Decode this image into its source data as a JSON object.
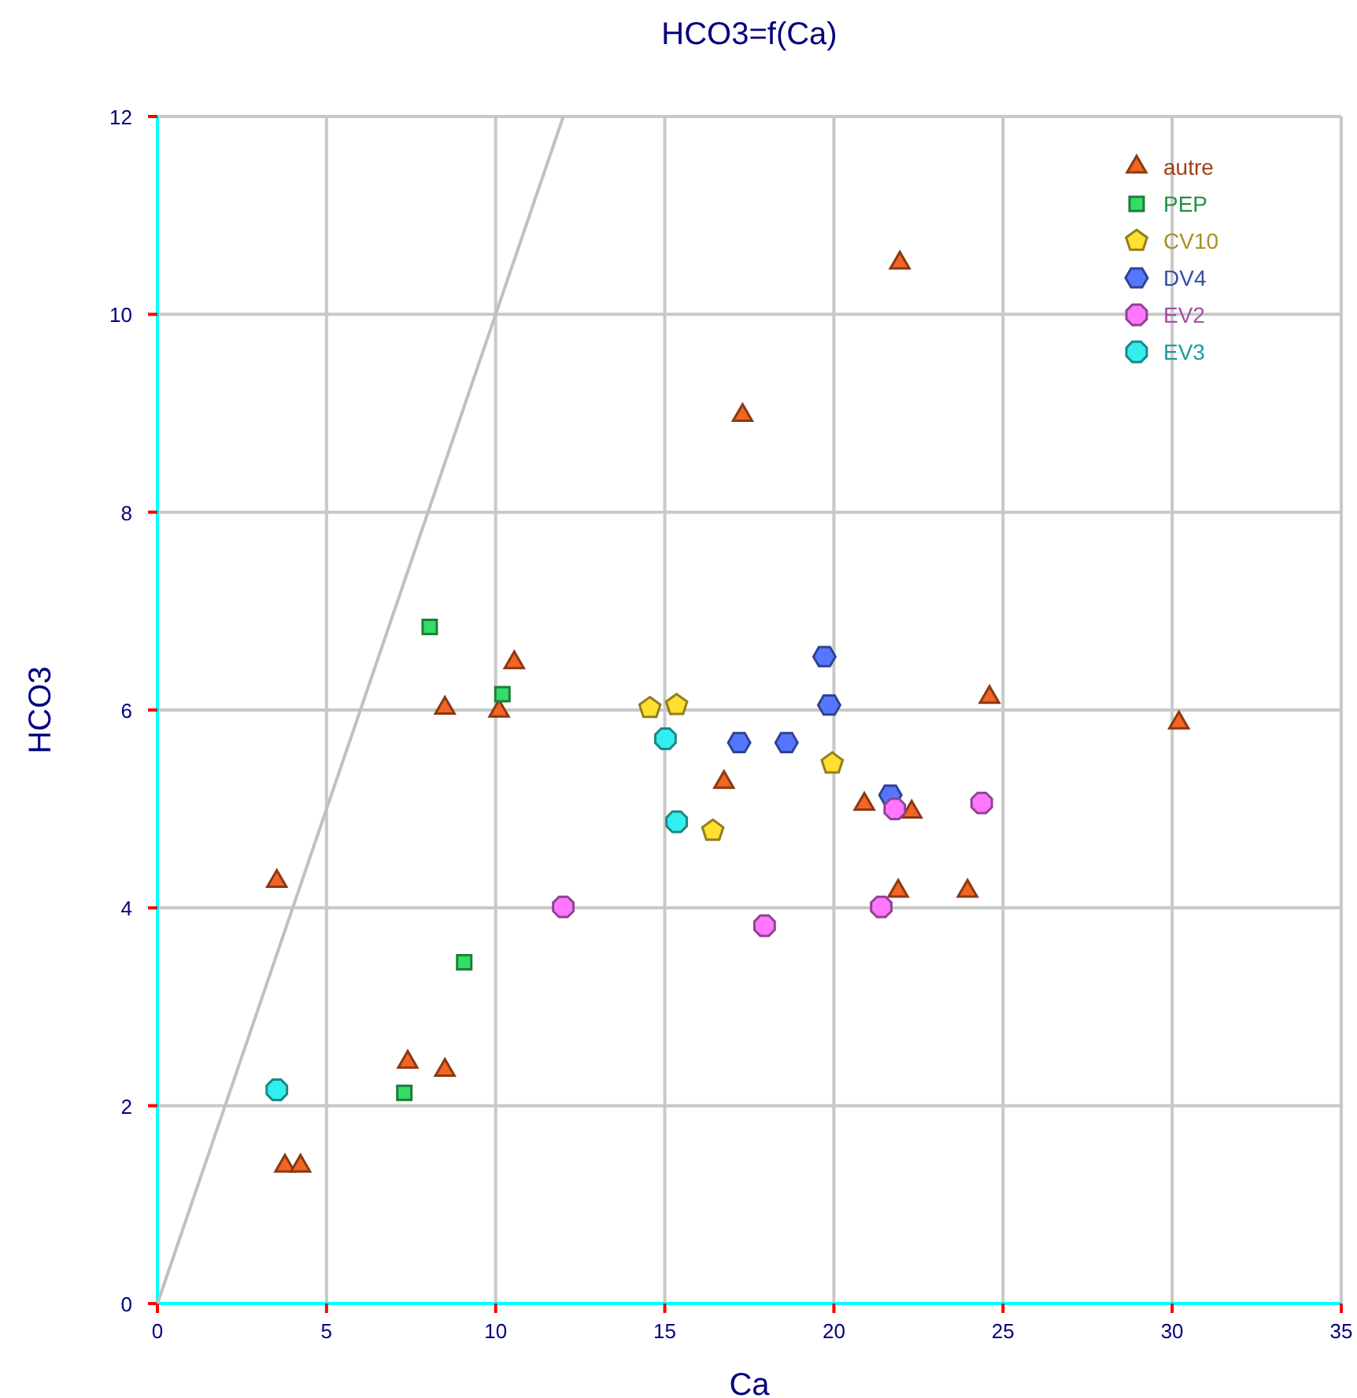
{
  "chart_data": {
    "type": "scatter",
    "title": "HCO3=f(Ca)",
    "xlabel": "Ca",
    "ylabel": "HCO3",
    "xlim": [
      0,
      35
    ],
    "ylim": [
      0,
      12
    ],
    "xticks": [
      0,
      5,
      10,
      15,
      20,
      25,
      30,
      35
    ],
    "yticks": [
      0,
      2,
      4,
      6,
      8,
      10,
      12
    ],
    "grid": true,
    "legend": "top right",
    "series": [
      {
        "name": "autre",
        "color": "#f26522",
        "marker": "triangle",
        "x": [
          3.53,
          3.77,
          4.23,
          7.4,
          8.5,
          8.5,
          10.1,
          10.55,
          16.75,
          17.3,
          20.9,
          21.95,
          22.3,
          21.9,
          23.95,
          24.6,
          30.2
        ],
        "values": [
          4.27,
          1.39,
          1.39,
          2.44,
          2.36,
          6.02,
          5.99,
          6.48,
          5.27,
          8.98,
          5.05,
          10.52,
          4.97,
          4.17,
          4.17,
          6.13,
          5.87
        ]
      },
      {
        "name": "PEP",
        "color": "#33dd66",
        "marker": "square",
        "x": [
          8.05,
          10.2,
          9.07,
          7.3
        ],
        "values": [
          6.84,
          6.16,
          3.45,
          2.13
        ]
      },
      {
        "name": "CV10",
        "color": "#ffe033",
        "x": [
          14.56,
          15.35,
          19.95,
          16.42
        ],
        "values": [
          6.02,
          6.05,
          5.46,
          4.78
        ]
      },
      {
        "name": "DV4",
        "color": "#5577ff",
        "x": [
          19.72,
          19.86,
          17.2,
          18.6,
          21.67
        ],
        "values": [
          6.54,
          6.05,
          5.67,
          5.67,
          5.14
        ]
      },
      {
        "name": "EV2",
        "color": "#ff77ff",
        "x": [
          12.0,
          17.95,
          21.4,
          21.8,
          24.37
        ],
        "values": [
          4.01,
          3.82,
          4.01,
          5.0,
          5.06
        ]
      },
      {
        "name": "EV3",
        "color": "#33eeee",
        "x": [
          3.53,
          15.02,
          15.35
        ],
        "values": [
          2.16,
          5.71,
          4.87
        ]
      },
      {
        "type": "line",
        "color": "#c0c0c0",
        "marker": "none",
        "x": [
          0,
          12
        ],
        "values": [
          0,
          12
        ]
      }
    ]
  }
}
